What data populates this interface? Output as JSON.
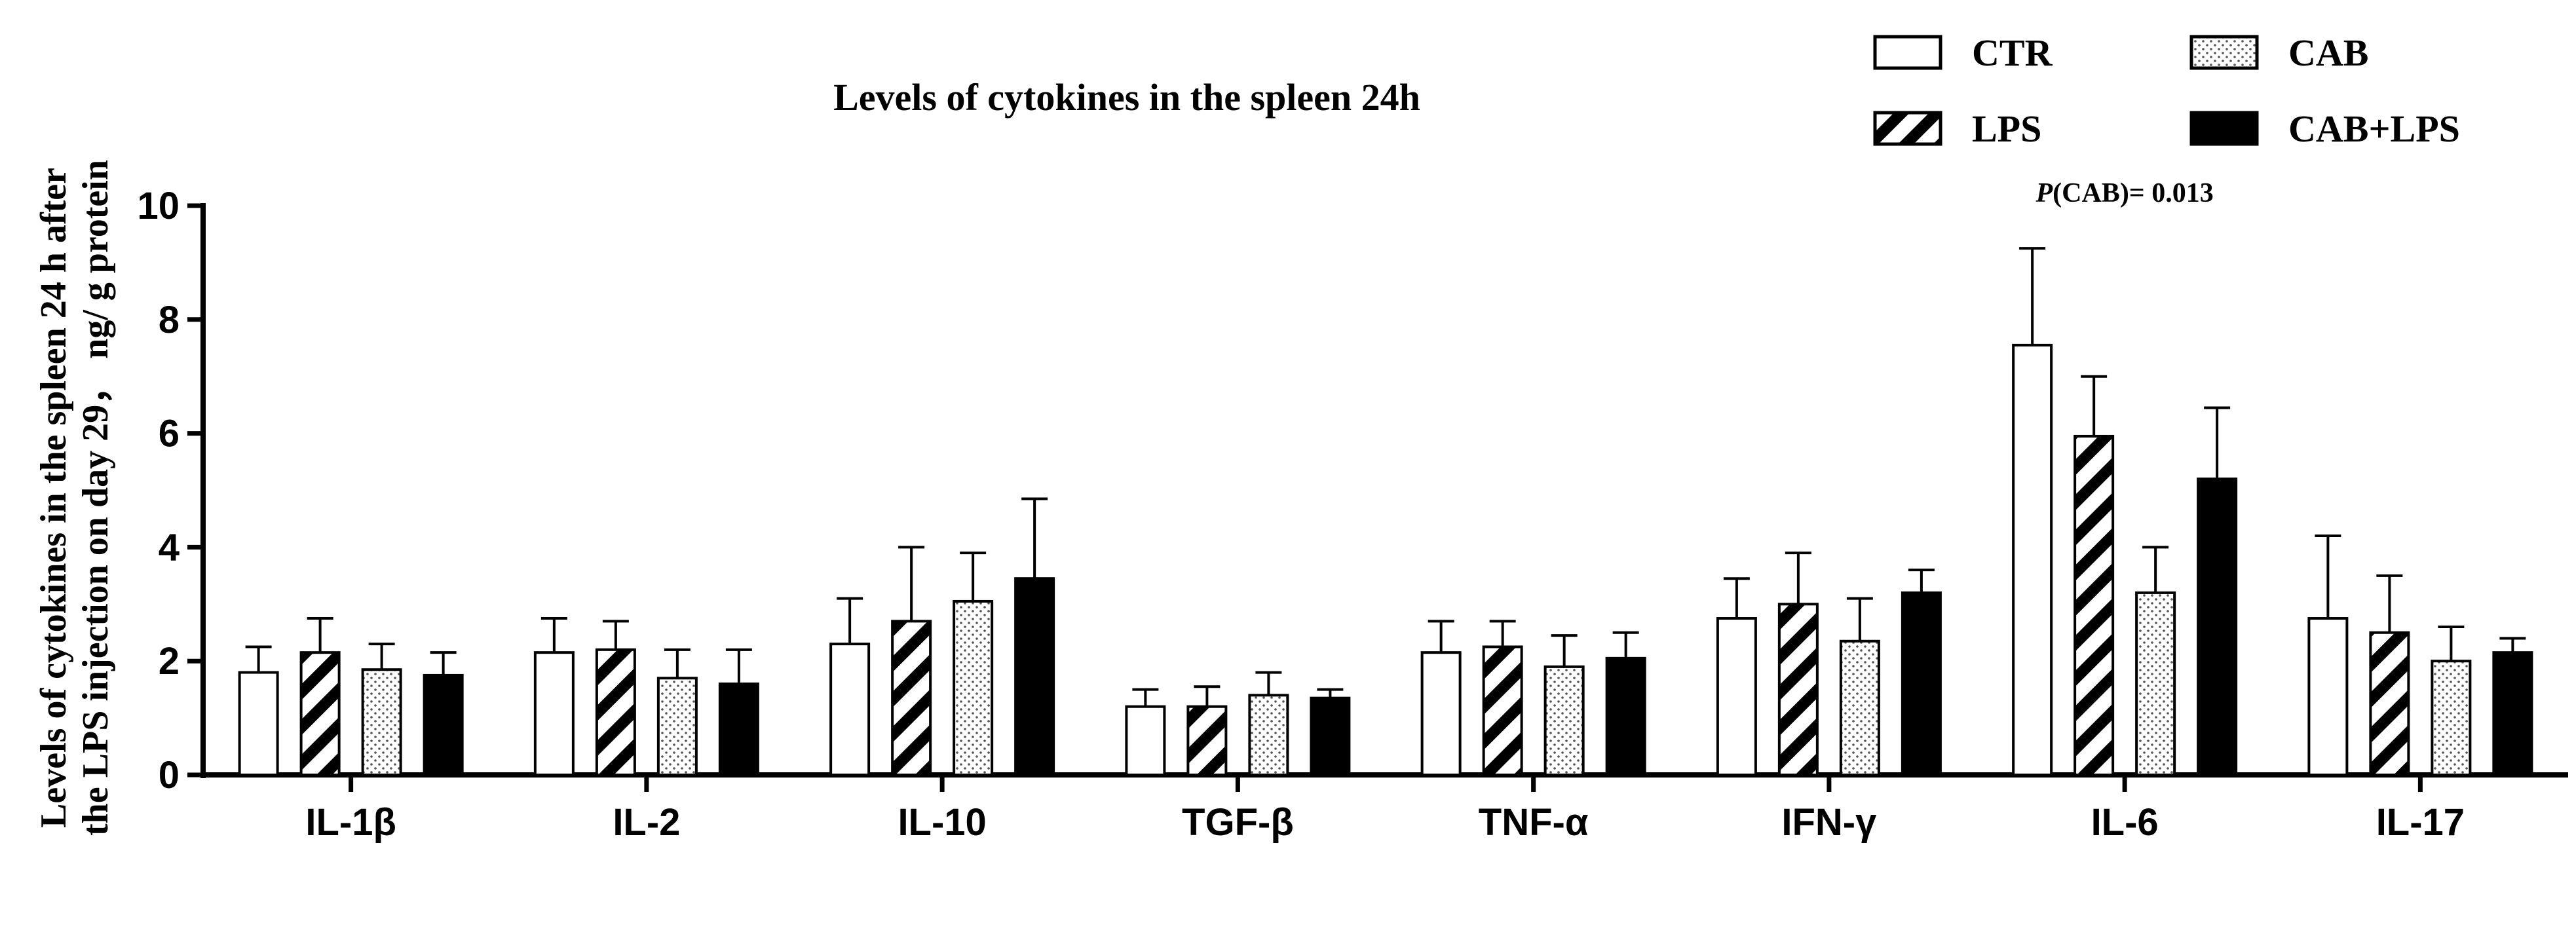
{
  "chart_data": {
    "type": "bar",
    "title": "Levels of cytokines in the spleen 24h",
    "ylabel_line1": "Levels of cytokines in the spleen 24 h after",
    "ylabel_line2": "the LPS injection on day 29， ng/ g protein",
    "xlabel": "",
    "ylim": [
      0,
      10
    ],
    "yticks": [
      0,
      2,
      4,
      6,
      8,
      10
    ],
    "categories": [
      "IL-1β",
      "IL-2",
      "IL-10",
      "TGF-β",
      "TNF-α",
      "IFN-γ",
      "IL-6",
      "IL-17"
    ],
    "series": [
      {
        "name": "CTR",
        "pattern": "open",
        "values": [
          1.8,
          2.15,
          2.3,
          1.2,
          2.15,
          2.75,
          7.55,
          2.75
        ],
        "errors": [
          0.45,
          0.6,
          0.8,
          0.3,
          0.55,
          0.7,
          1.7,
          1.45
        ]
      },
      {
        "name": "LPS",
        "pattern": "hatched",
        "values": [
          2.15,
          2.2,
          2.7,
          1.2,
          2.25,
          3.0,
          5.95,
          2.5
        ],
        "errors": [
          0.6,
          0.5,
          1.3,
          0.35,
          0.45,
          0.9,
          1.05,
          1.0
        ]
      },
      {
        "name": "CAB",
        "pattern": "dotted",
        "values": [
          1.85,
          1.7,
          3.05,
          1.4,
          1.9,
          2.35,
          3.2,
          2.0
        ],
        "errors": [
          0.45,
          0.5,
          0.85,
          0.4,
          0.55,
          0.75,
          0.8,
          0.6
        ]
      },
      {
        "name": "CAB+LPS",
        "pattern": "solid",
        "values": [
          1.75,
          1.6,
          3.45,
          1.35,
          2.05,
          3.2,
          5.2,
          2.15
        ],
        "errors": [
          0.4,
          0.6,
          1.4,
          0.15,
          0.45,
          0.4,
          1.25,
          0.25
        ]
      }
    ],
    "annotations": [
      {
        "category": "IL-6",
        "prefix": "P",
        "text": "(CAB)= 0.013"
      }
    ],
    "legend_position": "top-right",
    "grid": false,
    "colors": {
      "bar_stroke": "#000000",
      "bar_fill_open": "#ffffff",
      "bar_fill_solid": "#000000"
    }
  }
}
